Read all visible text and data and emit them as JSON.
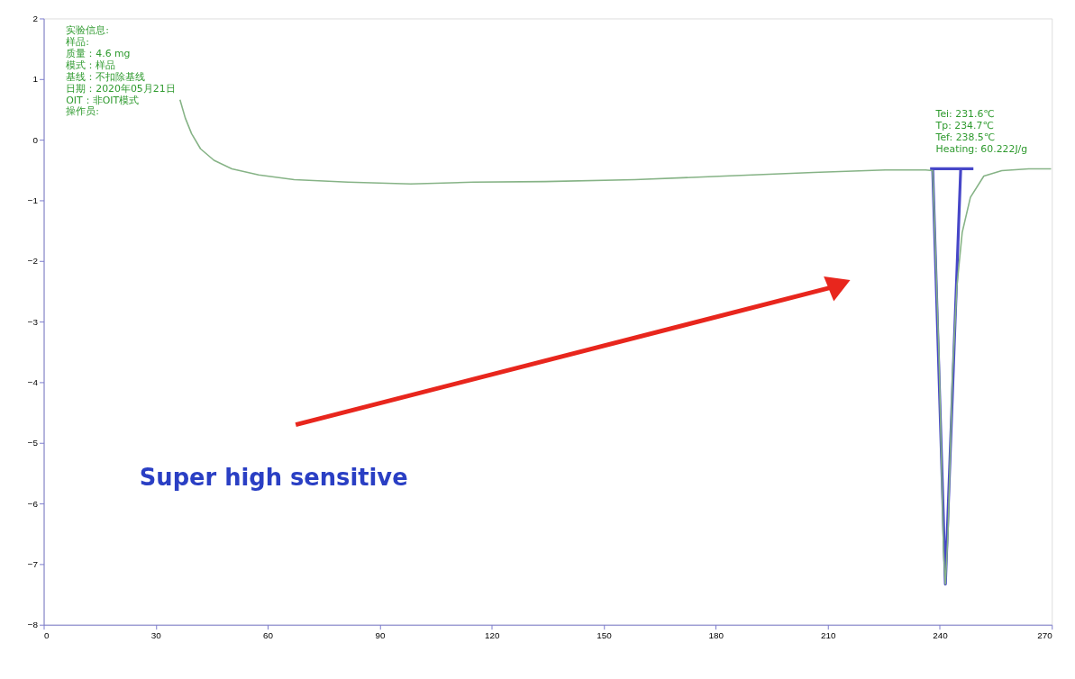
{
  "chart_data": {
    "type": "line",
    "xlim": [
      0,
      270
    ],
    "xticks": [
      0,
      30,
      60,
      90,
      120,
      150,
      180,
      210,
      240,
      270
    ],
    "ylim": [
      -8,
      2
    ],
    "yticks": [
      -8,
      -7,
      -6,
      -5,
      -4,
      -3,
      -2,
      -1,
      0,
      1,
      2
    ],
    "grid": false,
    "marker": "none",
    "line_style": "solid",
    "series": [
      {
        "color": "#86b386",
        "x": [
          36.5,
          37.9,
          39.6,
          42.0,
          45.6,
          50.4,
          57.6,
          67.1,
          81.5,
          98.3,
          115.1,
          134.3,
          158.3,
          182.3,
          206.2,
          225.4,
          236.2,
          238.1,
          239.8,
          241.0,
          241.5,
          242.2,
          243.4,
          244.6,
          246.0,
          248.2,
          251.8,
          256.6,
          263.8,
          269.8
        ],
        "values": [
          0.66,
          0.36,
          0.1,
          -0.15,
          -0.34,
          -0.48,
          -0.58,
          -0.66,
          -0.7,
          -0.73,
          -0.7,
          -0.69,
          -0.66,
          -0.6,
          -0.54,
          -0.5,
          -0.5,
          -0.51,
          -3.58,
          -6.79,
          -7.33,
          -6.5,
          -3.87,
          -2.41,
          -1.53,
          -0.95,
          -0.6,
          -0.51,
          -0.48,
          -0.48
        ]
      },
      {
        "color": "#4646c8",
        "x": [
          237.4,
          249.0
        ],
        "values": [
          -0.48,
          -0.48
        ]
      },
      {
        "color": "#4646c8",
        "x": [
          238.1,
          241.5,
          245.6
        ],
        "values": [
          -0.48,
          -7.33,
          -0.48
        ]
      }
    ],
    "annotations": [
      "实验信息:",
      "样品:",
      "质量：4.6 mg",
      "模式：样品",
      "基线：不扣除基线",
      "日期：2020年05月21日",
      "OIT：非OIT模式",
      "操作员:",
      "Tei: 231.6℃",
      "Tp: 234.7℃",
      "Tef: 238.5℃",
      "Heating: 60.222J/g",
      "Super high sensitive"
    ]
  }
}
